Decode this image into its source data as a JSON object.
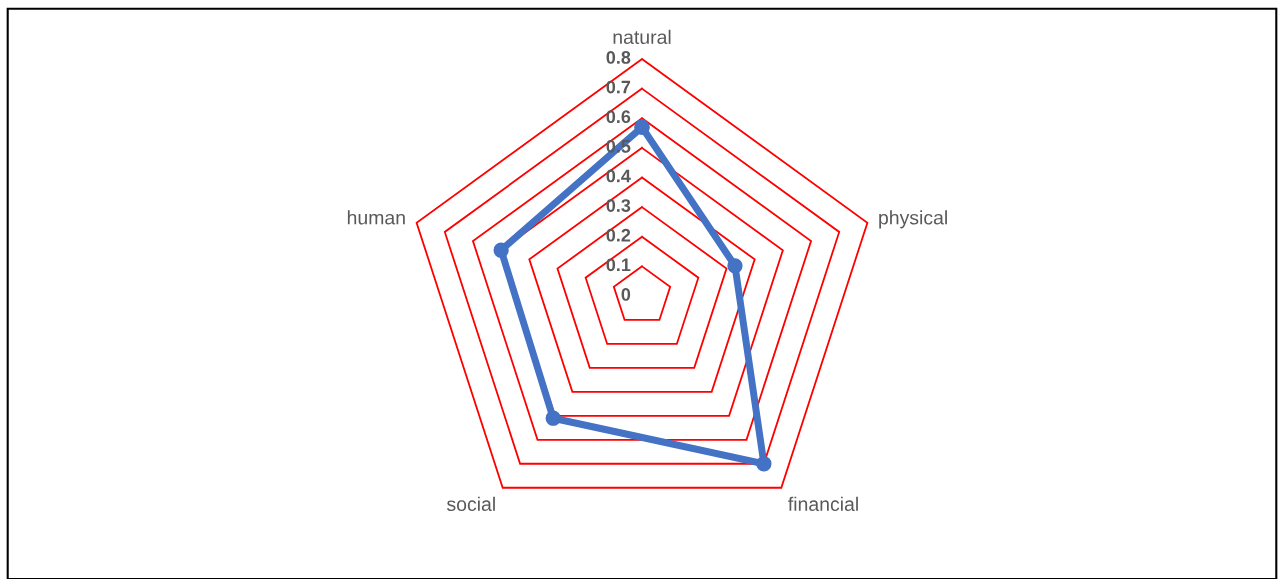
{
  "chart_data": {
    "type": "radar",
    "categories": [
      "natural",
      "physical",
      "financial",
      "social",
      "human"
    ],
    "series": [
      {
        "color": "#4472c4",
        "values": [
          0.57,
          0.33,
          0.7,
          0.51,
          0.5
        ]
      }
    ],
    "ylim": [
      0,
      0.8
    ],
    "yticks": [
      0,
      0.1,
      0.2,
      0.3,
      0.4,
      0.5,
      0.6,
      0.7,
      0.8
    ],
    "grid": true,
    "marker": "circle",
    "line_style": "solid"
  }
}
